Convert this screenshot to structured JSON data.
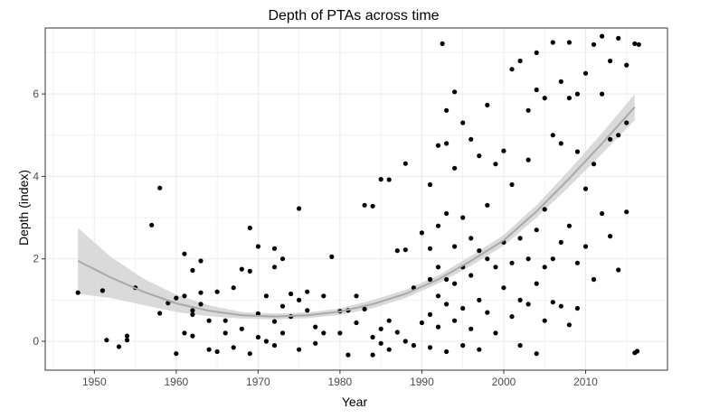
{
  "chart_data": {
    "type": "scatter",
    "title": "Depth of PTAs across time",
    "xlabel": "Year",
    "ylabel": "Depth (index)",
    "xlim": [
      1944,
      2020
    ],
    "ylim": [
      -0.7,
      7.6
    ],
    "x_ticks": [
      1950,
      1960,
      1970,
      1980,
      1990,
      2000,
      2010
    ],
    "y_ticks": [
      0,
      2,
      4,
      6
    ],
    "grid": true,
    "legend": "none",
    "colors": {
      "points": "#000000",
      "smooth_line": "#a9a9a9",
      "confidence_band": "#d4d4d4",
      "grid": "#ebebeb",
      "panel_border": "#333333"
    },
    "points": [
      [
        1948,
        1.18
      ],
      [
        1951,
        1.23
      ],
      [
        1951.5,
        0.03
      ],
      [
        1953,
        -0.13
      ],
      [
        1954,
        0.03
      ],
      [
        1954,
        0.13
      ],
      [
        1955,
        1.3
      ],
      [
        1957,
        2.82
      ],
      [
        1958,
        3.72
      ],
      [
        1958,
        0.68
      ],
      [
        1959,
        0.93
      ],
      [
        1960,
        -0.3
      ],
      [
        1960,
        1.05
      ],
      [
        1961,
        1.1
      ],
      [
        1961,
        0.2
      ],
      [
        1961,
        2.12
      ],
      [
        1962,
        0.75
      ],
      [
        1962,
        0.65
      ],
      [
        1962,
        1.72
      ],
      [
        1962,
        0.13
      ],
      [
        1963,
        1.18
      ],
      [
        1963,
        1.95
      ],
      [
        1963,
        0.9
      ],
      [
        1964,
        -0.2
      ],
      [
        1964,
        0.5
      ],
      [
        1965,
        1.2
      ],
      [
        1965,
        -0.25
      ],
      [
        1966,
        0.2
      ],
      [
        1966,
        0.5
      ],
      [
        1967,
        1.3
      ],
      [
        1967,
        -0.15
      ],
      [
        1968,
        1.75
      ],
      [
        1968,
        0.3
      ],
      [
        1969,
        2.75
      ],
      [
        1969,
        1.7
      ],
      [
        1969,
        -0.3
      ],
      [
        1970,
        2.3
      ],
      [
        1970,
        0.67
      ],
      [
        1970,
        0.1
      ],
      [
        1971,
        1.1
      ],
      [
        1971,
        0.0
      ],
      [
        1972,
        2.25
      ],
      [
        1972,
        1.8
      ],
      [
        1972,
        0.48
      ],
      [
        1972,
        -0.1
      ],
      [
        1973,
        0.85
      ],
      [
        1973,
        2.0
      ],
      [
        1973,
        0.2
      ],
      [
        1974,
        1.15
      ],
      [
        1974,
        0.6
      ],
      [
        1975,
        3.22
      ],
      [
        1975,
        1.0
      ],
      [
        1975,
        -0.2
      ],
      [
        1976,
        1.2
      ],
      [
        1976,
        0.75
      ],
      [
        1977,
        0.35
      ],
      [
        1977,
        -0.05
      ],
      [
        1978,
        1.1
      ],
      [
        1978,
        0.2
      ],
      [
        1979,
        2.05
      ],
      [
        1980,
        0.73
      ],
      [
        1980,
        0.2
      ],
      [
        1981,
        0.75
      ],
      [
        1981,
        -0.33
      ],
      [
        1982,
        1.1
      ],
      [
        1982,
        0.45
      ],
      [
        1983,
        3.3
      ],
      [
        1983,
        0.78
      ],
      [
        1984,
        3.28
      ],
      [
        1984,
        0.1
      ],
      [
        1984,
        -0.33
      ],
      [
        1985,
        3.93
      ],
      [
        1985,
        0.3
      ],
      [
        1985,
        -0.05
      ],
      [
        1986,
        0.5
      ],
      [
        1986,
        -0.2
      ],
      [
        1986,
        3.92
      ],
      [
        1987,
        2.2
      ],
      [
        1987,
        0.22
      ],
      [
        1988,
        4.31
      ],
      [
        1988,
        2.22
      ],
      [
        1988,
        0.0
      ],
      [
        1989,
        1.3
      ],
      [
        1989,
        -0.1
      ],
      [
        1990,
        2.63
      ],
      [
        1990,
        0.45
      ],
      [
        1991,
        3.8
      ],
      [
        1991,
        2.25
      ],
      [
        1991,
        1.5
      ],
      [
        1991,
        0.65
      ],
      [
        1991,
        -0.15
      ],
      [
        1992,
        4.75
      ],
      [
        1992,
        2.8
      ],
      [
        1992,
        1.8
      ],
      [
        1992,
        1.1
      ],
      [
        1992,
        0.35
      ],
      [
        1992.5,
        7.22
      ],
      [
        1993,
        5.6
      ],
      [
        1993,
        4.8
      ],
      [
        1993,
        3.1
      ],
      [
        1993,
        1.5
      ],
      [
        1993,
        0.9
      ],
      [
        1993,
        -0.25
      ],
      [
        1994,
        6.05
      ],
      [
        1994,
        4.2
      ],
      [
        1994,
        2.3
      ],
      [
        1994,
        1.4
      ],
      [
        1994,
        0.5
      ],
      [
        1995,
        5.3
      ],
      [
        1995,
        3.0
      ],
      [
        1995,
        1.8
      ],
      [
        1995,
        0.8
      ],
      [
        1995,
        -0.1
      ],
      [
        1996,
        4.9
      ],
      [
        1996,
        2.5
      ],
      [
        1996,
        1.6
      ],
      [
        1996,
        0.3
      ],
      [
        1997,
        4.5
      ],
      [
        1997,
        2.2
      ],
      [
        1997,
        1.0
      ],
      [
        1997,
        -0.2
      ],
      [
        1998,
        5.73
      ],
      [
        1998,
        3.3
      ],
      [
        1998,
        2.0
      ],
      [
        1998,
        0.7
      ],
      [
        1999,
        4.3
      ],
      [
        1999,
        1.8
      ],
      [
        1999,
        0.2
      ],
      [
        2000,
        4.62
      ],
      [
        2000,
        2.4
      ],
      [
        2000,
        1.3
      ],
      [
        2001,
        6.6
      ],
      [
        2001,
        3.8
      ],
      [
        2001,
        1.9
      ],
      [
        2001,
        0.6
      ],
      [
        2002,
        6.8
      ],
      [
        2002,
        2.5
      ],
      [
        2002,
        1.0
      ],
      [
        2002,
        -0.1
      ],
      [
        2003,
        5.6
      ],
      [
        2003,
        4.4
      ],
      [
        2003,
        2.0
      ],
      [
        2003,
        0.9
      ],
      [
        2004,
        7.0
      ],
      [
        2004,
        6.1
      ],
      [
        2004,
        2.7
      ],
      [
        2004,
        1.4
      ],
      [
        2004,
        -0.3
      ],
      [
        2005,
        5.9
      ],
      [
        2005,
        3.2
      ],
      [
        2005,
        1.8
      ],
      [
        2005,
        0.5
      ],
      [
        2006,
        7.25
      ],
      [
        2006,
        5.0
      ],
      [
        2006,
        2.0
      ],
      [
        2006,
        0.95
      ],
      [
        2007,
        6.3
      ],
      [
        2007,
        4.8
      ],
      [
        2007,
        2.4
      ],
      [
        2007,
        0.85
      ],
      [
        2008,
        7.25
      ],
      [
        2008,
        5.9
      ],
      [
        2008,
        2.8
      ],
      [
        2008,
        0.4
      ],
      [
        2009,
        6.0
      ],
      [
        2009,
        4.6
      ],
      [
        2009,
        1.9
      ],
      [
        2009,
        0.8
      ],
      [
        2010,
        6.5
      ],
      [
        2010,
        3.7
      ],
      [
        2010,
        2.3
      ],
      [
        2011,
        7.2
      ],
      [
        2011,
        4.3
      ],
      [
        2011,
        1.5
      ],
      [
        2012,
        7.4
      ],
      [
        2012,
        6.0
      ],
      [
        2012,
        3.1
      ],
      [
        2013,
        6.8
      ],
      [
        2013,
        4.9
      ],
      [
        2013,
        2.55
      ],
      [
        2014,
        7.35
      ],
      [
        2014,
        5.0
      ],
      [
        2014,
        1.73
      ],
      [
        2015,
        6.7
      ],
      [
        2015,
        5.3
      ],
      [
        2015,
        3.14
      ],
      [
        2016,
        7.22
      ],
      [
        2016,
        -0.28
      ],
      [
        2016.3,
        -0.24
      ],
      [
        2016.5,
        7.2
      ]
    ],
    "smooth": {
      "x": [
        1948,
        1952,
        1956,
        1960,
        1964,
        1968,
        1972,
        1976,
        1980,
        1984,
        1988,
        1992,
        1996,
        2000,
        2004,
        2008,
        2012,
        2016
      ],
      "y": [
        1.95,
        1.55,
        1.2,
        0.92,
        0.74,
        0.63,
        0.6,
        0.63,
        0.72,
        0.9,
        1.15,
        1.5,
        1.95,
        2.45,
        3.15,
        3.95,
        4.8,
        5.68
      ],
      "upper": [
        2.75,
        2.05,
        1.52,
        1.13,
        0.87,
        0.71,
        0.67,
        0.7,
        0.8,
        1.0,
        1.25,
        1.6,
        2.07,
        2.58,
        3.3,
        4.15,
        5.05,
        6.0
      ],
      "lower": [
        1.15,
        1.05,
        0.88,
        0.71,
        0.61,
        0.55,
        0.53,
        0.56,
        0.64,
        0.8,
        1.05,
        1.4,
        1.83,
        2.32,
        3.0,
        3.75,
        4.55,
        5.36
      ]
    }
  }
}
